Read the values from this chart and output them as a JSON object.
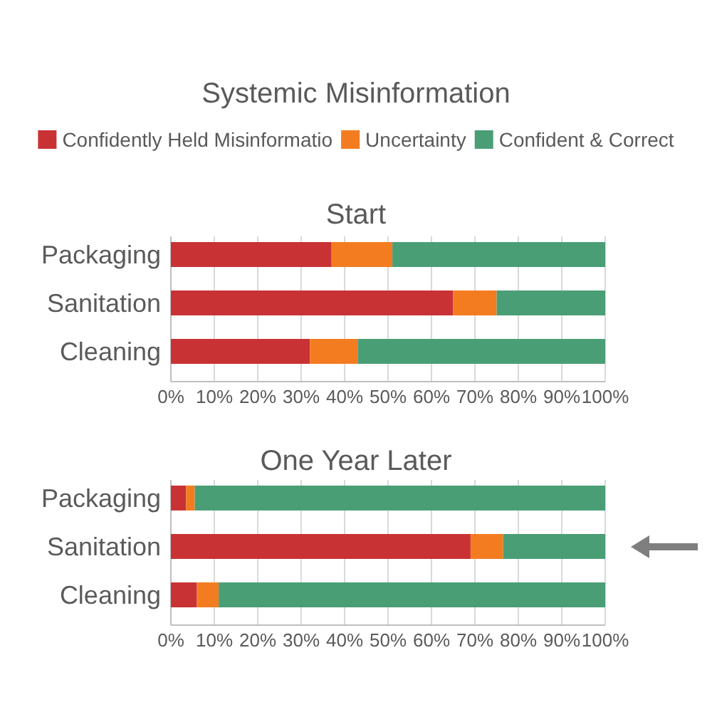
{
  "chart_data": [
    {
      "type": "bar",
      "orientation": "horizontal",
      "stacked": true,
      "title": "Systemic Misinformation",
      "subtitle": "Start",
      "categories": [
        "Packaging",
        "Sanitation",
        "Cleaning"
      ],
      "series": [
        {
          "name": "Confidently Held Misinformatio",
          "color": "#c93235",
          "values": [
            37,
            65,
            32
          ]
        },
        {
          "name": "Uncertainty",
          "color": "#f47c20",
          "values": [
            14,
            10,
            11
          ]
        },
        {
          "name": "Confident & Correct",
          "color": "#4a9e76",
          "values": [
            49,
            25,
            57
          ]
        }
      ],
      "xlim": [
        0,
        100
      ],
      "xticks": [
        {
          "value": 0,
          "label": "0%"
        },
        {
          "value": 10,
          "label": "10%"
        },
        {
          "value": 20,
          "label": "20%"
        },
        {
          "value": 30,
          "label": "30%"
        },
        {
          "value": 40,
          "label": "40%"
        },
        {
          "value": 50,
          "label": "50%"
        },
        {
          "value": 60,
          "label": "60%"
        },
        {
          "value": 70,
          "label": "70%"
        },
        {
          "value": 80,
          "label": "80%"
        },
        {
          "value": 90,
          "label": "90%"
        },
        {
          "value": 100,
          "label": "100%"
        }
      ],
      "grid": "x",
      "legend": "top"
    },
    {
      "type": "bar",
      "orientation": "horizontal",
      "stacked": true,
      "title": "One Year Later",
      "categories": [
        "Packaging",
        "Sanitation",
        "Cleaning"
      ],
      "series": [
        {
          "color": "#c93235",
          "values": [
            3.5,
            69,
            6
          ]
        },
        {
          "color": "#f47c20",
          "values": [
            2,
            7.5,
            5
          ]
        },
        {
          "color": "#4a9e76",
          "values": [
            94.5,
            23.5,
            89
          ]
        }
      ],
      "xlim": [
        0,
        100
      ],
      "xticks": [
        {
          "value": 0,
          "label": "0%"
        },
        {
          "value": 10,
          "label": "10%"
        },
        {
          "value": 20,
          "label": "20%"
        },
        {
          "value": 30,
          "label": "30%"
        },
        {
          "value": 40,
          "label": "40%"
        },
        {
          "value": 50,
          "label": "50%"
        },
        {
          "value": 60,
          "label": "60%"
        },
        {
          "value": 70,
          "label": "70%"
        },
        {
          "value": 80,
          "label": "80%"
        },
        {
          "value": 90,
          "label": "90%"
        },
        {
          "value": 100,
          "label": "100%"
        }
      ],
      "grid": "x"
    }
  ]
}
